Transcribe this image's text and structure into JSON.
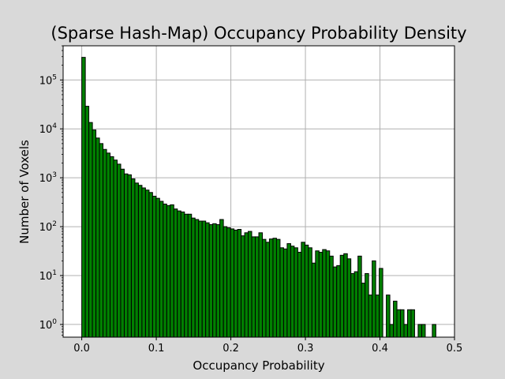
{
  "chart_data": {
    "type": "bar",
    "title": "(Sparse Hash-Map) Occupancy Probability Density",
    "xlabel": "Occupancy Probability",
    "ylabel": "Number of Voxels",
    "xlim": [
      -0.025,
      0.5
    ],
    "ylim": [
      0.55,
      500000
    ],
    "yscale": "log",
    "grid": true,
    "bar_color": "#008000",
    "edge_color": "#000000",
    "background": "#d9d9d9",
    "plot_background": "#ffffff",
    "bin_width": 0.00475,
    "x": [
      0.0024,
      0.0071,
      0.0119,
      0.0166,
      0.0214,
      0.0261,
      0.0309,
      0.0356,
      0.0404,
      0.0451,
      0.0499,
      0.0546,
      0.0594,
      0.0641,
      0.0689,
      0.0736,
      0.0784,
      0.0831,
      0.0879,
      0.0926,
      0.0974,
      0.1021,
      0.1069,
      0.1116,
      0.1164,
      0.1211,
      0.1259,
      0.1306,
      0.1354,
      0.1401,
      0.1449,
      0.1496,
      0.1544,
      0.1591,
      0.1639,
      0.1686,
      0.1734,
      0.1781,
      0.1829,
      0.1876,
      0.1924,
      0.1971,
      0.2019,
      0.2066,
      0.2114,
      0.2161,
      0.2209,
      0.2256,
      0.2304,
      0.2351,
      0.2399,
      0.2446,
      0.2494,
      0.2541,
      0.2589,
      0.2636,
      0.2684,
      0.2731,
      0.2779,
      0.2826,
      0.2874,
      0.2921,
      0.2969,
      0.3016,
      0.3064,
      0.3111,
      0.3159,
      0.3206,
      0.3254,
      0.3301,
      0.3349,
      0.3396,
      0.3444,
      0.3491,
      0.3539,
      0.3586,
      0.3634,
      0.3681,
      0.3729,
      0.3776,
      0.3824,
      0.3871,
      0.3919,
      0.3966,
      0.4014,
      0.4061,
      0.4109,
      0.4156,
      0.4204,
      0.4251,
      0.4299,
      0.4346,
      0.4394,
      0.4441,
      0.4489,
      0.4536,
      0.4584,
      0.4631,
      0.4679,
      0.4726
    ],
    "values": [
      290000,
      29000,
      13500,
      9500,
      6500,
      5000,
      3800,
      3200,
      2700,
      2300,
      1900,
      1500,
      1200,
      1150,
      950,
      780,
      700,
      620,
      560,
      500,
      420,
      380,
      330,
      290,
      270,
      280,
      230,
      210,
      200,
      180,
      180,
      150,
      140,
      130,
      130,
      120,
      110,
      115,
      110,
      140,
      100,
      95,
      90,
      85,
      88,
      65,
      75,
      80,
      62,
      62,
      75,
      55,
      48,
      56,
      58,
      55,
      37,
      35,
      45,
      40,
      37,
      30,
      48,
      42,
      37,
      18,
      32,
      30,
      34,
      32,
      25,
      15,
      16,
      26,
      28,
      22,
      11,
      12,
      25,
      7,
      11,
      4,
      20,
      4,
      14,
      0,
      4,
      1,
      3,
      2,
      2,
      1,
      2,
      2,
      0,
      1,
      1,
      0,
      0,
      1
    ]
  }
}
